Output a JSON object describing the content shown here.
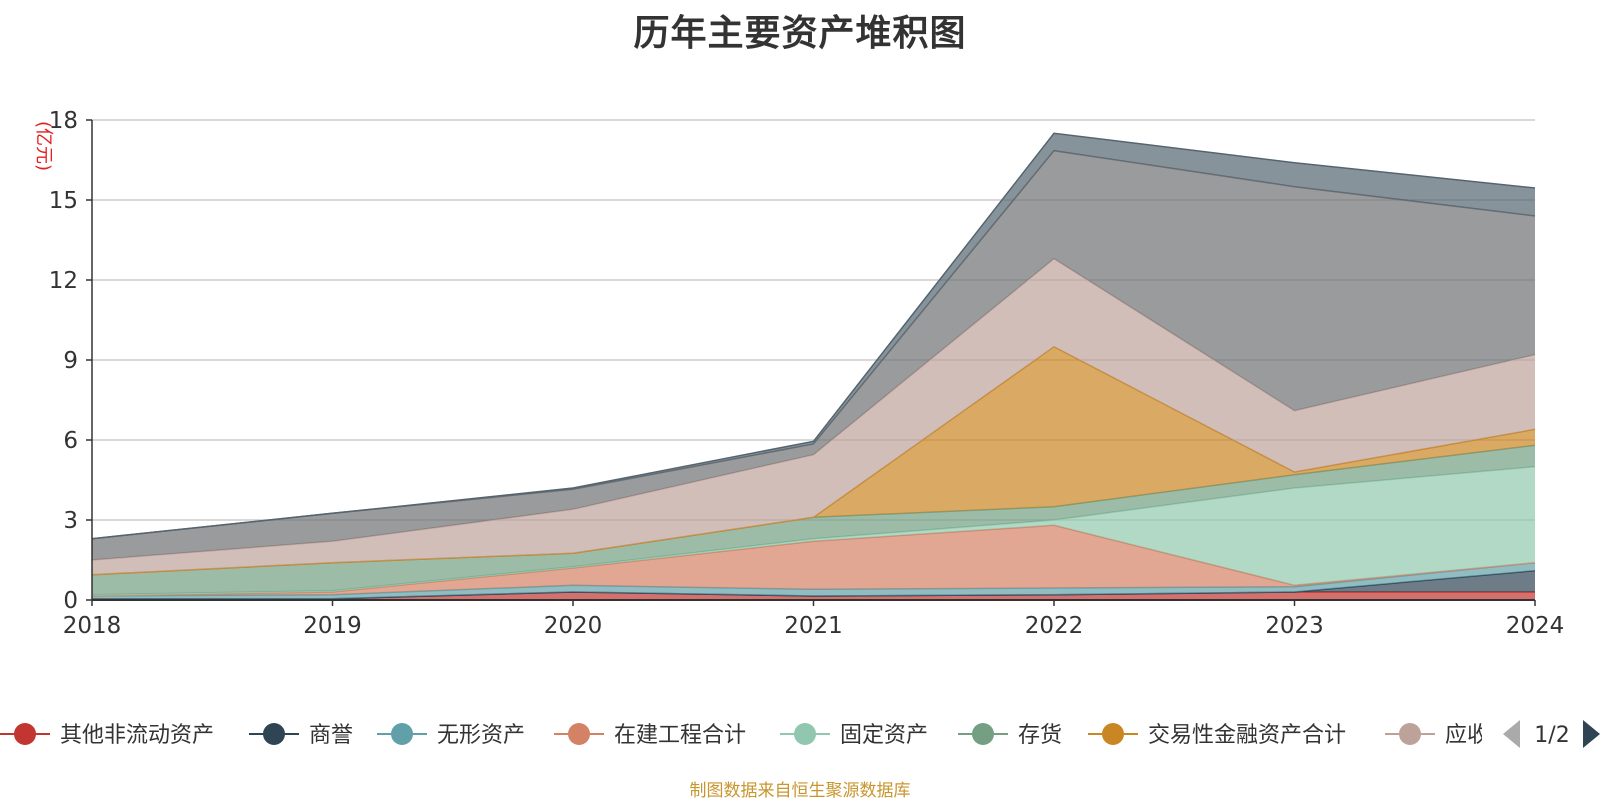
{
  "chart_data": {
    "type": "area",
    "stacked": true,
    "title": "历年主要资产堆积图",
    "unit": "(亿元)",
    "x": [
      "2018",
      "2019",
      "2020",
      "2021",
      "2022",
      "2023",
      "2024"
    ],
    "ylim": [
      0,
      18
    ],
    "yticks": [
      0,
      3,
      6,
      9,
      12,
      15,
      18
    ],
    "grid": true,
    "legend_position": "bottom",
    "legend_page": "1/2",
    "series": [
      {
        "name": "其他非流动资产",
        "color": "#c23531",
        "values": [
          0.05,
          0.05,
          0.3,
          0.15,
          0.2,
          0.3,
          0.3
        ]
      },
      {
        "name": "商誉",
        "color": "#2f4554",
        "values": [
          0.0,
          0.0,
          0.0,
          0.0,
          0.0,
          0.0,
          0.8
        ]
      },
      {
        "name": "无形资产",
        "color": "#61a0a8",
        "values": [
          0.1,
          0.15,
          0.25,
          0.25,
          0.25,
          0.2,
          0.3
        ]
      },
      {
        "name": "在建工程合计",
        "color": "#d48265",
        "values": [
          0.0,
          0.1,
          0.65,
          1.8,
          2.35,
          0.05,
          0.0
        ]
      },
      {
        "name": "固定资产",
        "color": "#91c7ae",
        "values": [
          0.05,
          0.05,
          0.05,
          0.1,
          0.2,
          3.65,
          3.6
        ]
      },
      {
        "name": "存货",
        "color": "#749f83",
        "values": [
          0.75,
          1.05,
          0.5,
          0.8,
          0.5,
          0.5,
          0.8
        ]
      },
      {
        "name": "交易性金融资产合计",
        "color": "#ca8622",
        "values": [
          0.0,
          0.0,
          0.0,
          0.0,
          6.0,
          0.1,
          0.6
        ]
      },
      {
        "name": "应收",
        "color": "#bda29a",
        "values": [
          0.55,
          0.8,
          1.65,
          2.35,
          3.3,
          2.3,
          2.8
        ]
      },
      {
        "name": "",
        "color": "#6e7074",
        "values": [
          0.8,
          1.05,
          0.75,
          0.4,
          4.05,
          8.4,
          5.2
        ]
      },
      {
        "name": "",
        "color": "#546570",
        "values": [
          0.0,
          0.0,
          0.05,
          0.1,
          0.65,
          0.9,
          1.05
        ]
      }
    ],
    "source_note": "制图数据来自恒生聚源数据库"
  }
}
